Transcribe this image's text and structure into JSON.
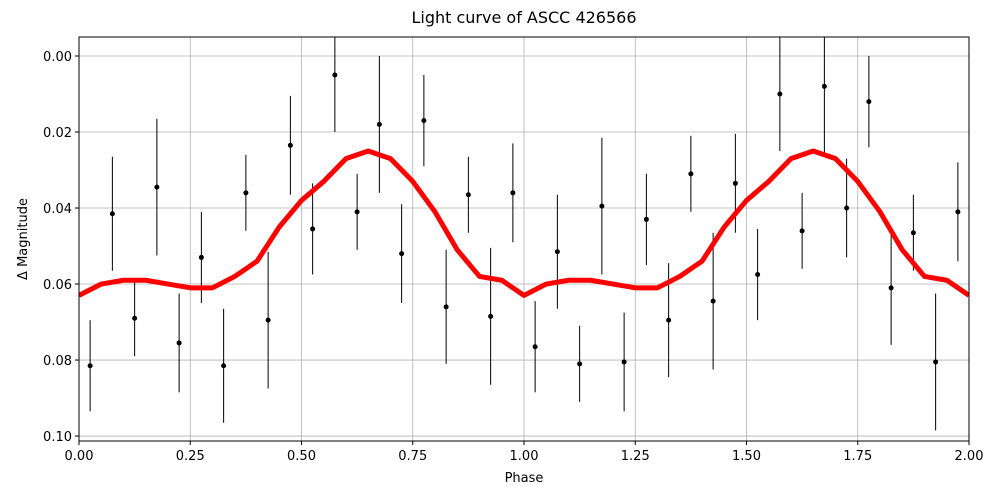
{
  "chart_data": {
    "type": "scatter",
    "title": "Light curve of ASCC 426566",
    "x_label": "Phase",
    "y_label": "Δ Magnitude",
    "xlim": [
      0,
      2
    ],
    "ylim": [
      -0.005,
      0.1013
    ],
    "y_inverted": true,
    "grid": true,
    "xticks": [
      {
        "value": 0,
        "label": "0.00"
      },
      {
        "value": 0.25,
        "label": "0.25"
      },
      {
        "value": 0.5,
        "label": "0.50"
      },
      {
        "value": 0.75,
        "label": "0.75"
      },
      {
        "value": 1,
        "label": "1.00"
      },
      {
        "value": 1.25,
        "label": "1.25"
      },
      {
        "value": 1.5,
        "label": "1.50"
      },
      {
        "value": 1.75,
        "label": "1.75"
      },
      {
        "value": 2,
        "label": "2.00"
      }
    ],
    "yticks": [
      {
        "value": 0,
        "label": "0.00"
      },
      {
        "value": 0.02,
        "label": "0.02"
      },
      {
        "value": 0.04,
        "label": "0.04"
      },
      {
        "value": 0.06,
        "label": "0.06"
      },
      {
        "value": 0.08,
        "label": "0.08"
      },
      {
        "value": 0.1,
        "label": "0.10"
      }
    ],
    "series": [
      {
        "type": "errorbar",
        "color": "#000000",
        "x": [
          0.025,
          0.075,
          0.125,
          0.175,
          0.225,
          0.275,
          0.325,
          0.375,
          0.425,
          0.475,
          0.525,
          0.575,
          0.625,
          0.675,
          0.725,
          0.775,
          0.825,
          0.875,
          0.925,
          0.975,
          1.025,
          1.075,
          1.125,
          1.175,
          1.225,
          1.275,
          1.325,
          1.375,
          1.425,
          1.475,
          1.525,
          1.575,
          1.625,
          1.675,
          1.725,
          1.775,
          1.825,
          1.875,
          1.925,
          1.975
        ],
        "values": [
          0.0815,
          0.0415,
          0.069,
          0.0345,
          0.0755,
          0.053,
          0.0815,
          0.036,
          0.0695,
          0.0235,
          0.0455,
          0.005,
          0.041,
          0.018,
          0.052,
          0.017,
          0.066,
          0.0365,
          0.0685,
          0.036,
          0.0765,
          0.0515,
          0.081,
          0.0395,
          0.0805,
          0.043,
          0.0695,
          0.031,
          0.0645,
          0.0335,
          0.0575,
          0.01,
          0.046,
          0.008,
          0.04,
          0.012,
          0.061,
          0.0465,
          0.0805,
          0.041
        ],
        "errors": [
          0.012,
          0.015,
          0.01,
          0.018,
          0.013,
          0.012,
          0.015,
          0.01,
          0.018,
          0.013,
          0.012,
          0.015,
          0.01,
          0.018,
          0.013,
          0.012,
          0.015,
          0.01,
          0.018,
          0.013,
          0.012,
          0.015,
          0.01,
          0.018,
          0.013,
          0.012,
          0.015,
          0.01,
          0.018,
          0.013,
          0.012,
          0.015,
          0.01,
          0.018,
          0.013,
          0.012,
          0.015,
          0.01,
          0.018,
          0.013
        ]
      },
      {
        "type": "line",
        "color": "#ff0000",
        "x": [
          0,
          0.05,
          0.1,
          0.15,
          0.2,
          0.25,
          0.3,
          0.35,
          0.4,
          0.45,
          0.5,
          0.55,
          0.6,
          0.65,
          0.7,
          0.75,
          0.8,
          0.85,
          0.9,
          0.95,
          1,
          1.05,
          1.1,
          1.15,
          1.2,
          1.25,
          1.3,
          1.35,
          1.4,
          1.45,
          1.5,
          1.55,
          1.6,
          1.65,
          1.7,
          1.75,
          1.8,
          1.85,
          1.9,
          1.95,
          2
        ],
        "values": [
          0.063,
          0.06,
          0.059,
          0.059,
          0.06,
          0.061,
          0.061,
          0.058,
          0.054,
          0.045,
          0.038,
          0.033,
          0.027,
          0.025,
          0.027,
          0.033,
          0.041,
          0.051,
          0.058,
          0.059,
          0.063,
          0.06,
          0.059,
          0.059,
          0.06,
          0.061,
          0.061,
          0.058,
          0.054,
          0.045,
          0.038,
          0.033,
          0.027,
          0.025,
          0.027,
          0.033,
          0.041,
          0.051,
          0.058,
          0.059,
          0.063
        ]
      }
    ]
  }
}
